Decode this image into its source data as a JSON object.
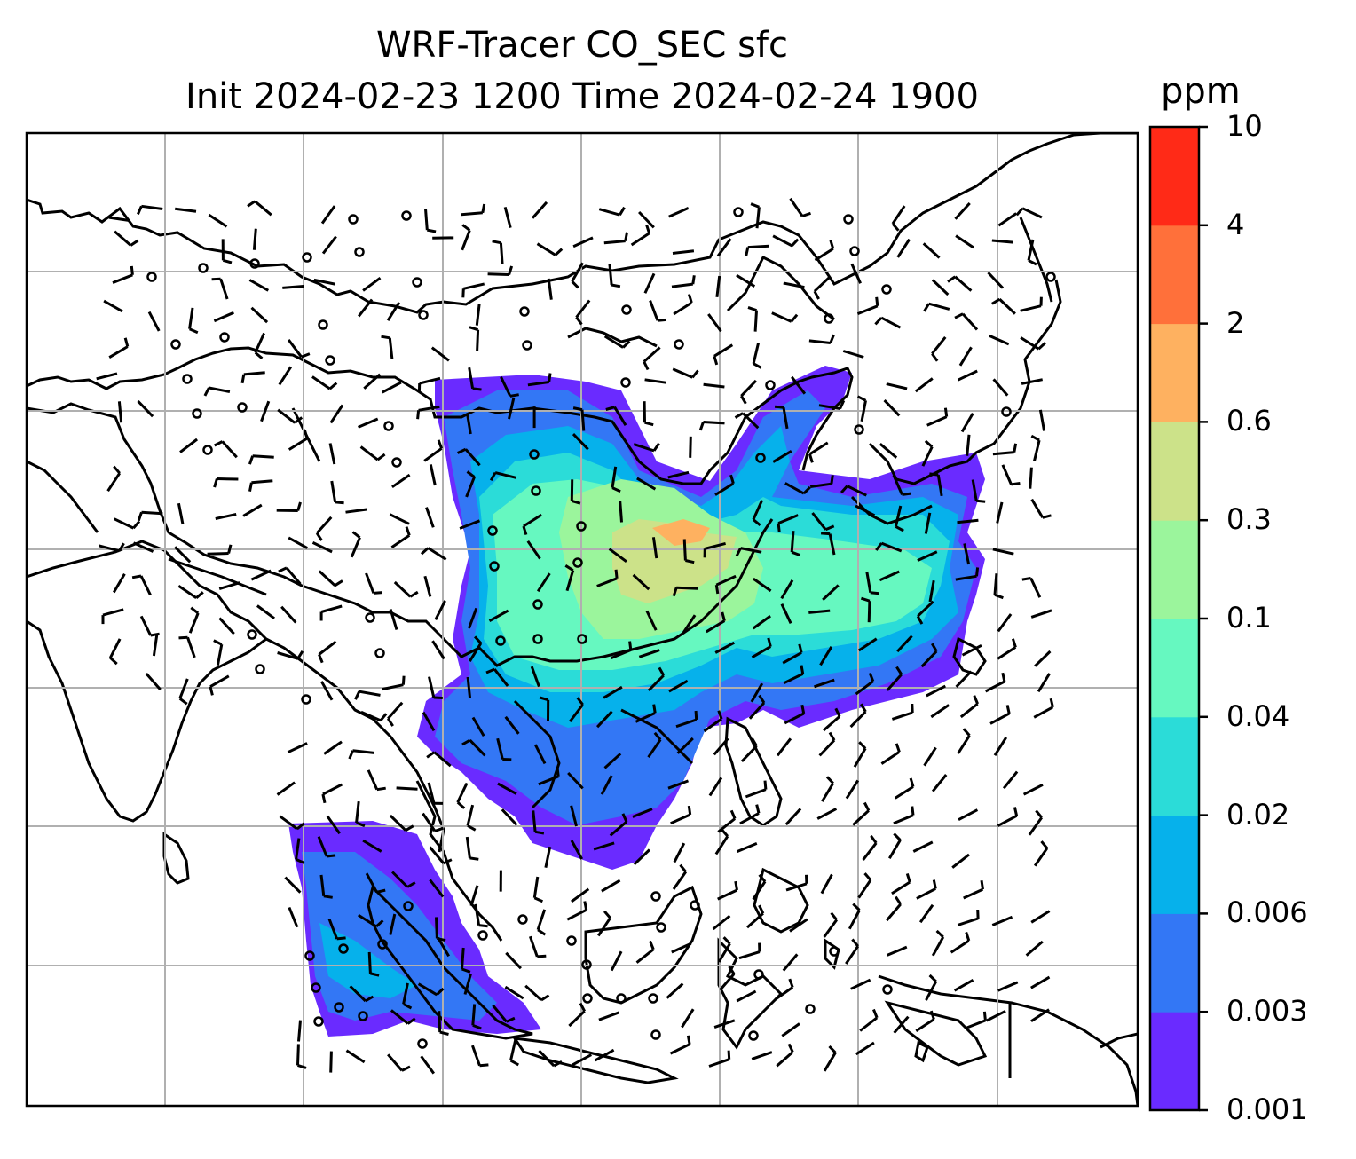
{
  "title": {
    "line1": "WRF-Tracer CO_SEC sfc",
    "line2": "Init 2024-02-23 1200 Time 2024-02-24 1900"
  },
  "colorbar": {
    "unit": "ppm",
    "levels": [
      "0.001",
      "0.003",
      "0.006",
      "0.02",
      "0.04",
      "0.1",
      "0.3",
      "0.6",
      "2",
      "4",
      "10"
    ],
    "colors": [
      "#6a2bff",
      "#3377f5",
      "#06b1eb",
      "#2bdcd8",
      "#66f8c0",
      "#9bf59c",
      "#cce289",
      "#feb160",
      "#ff703a",
      "#ff2a17"
    ]
  },
  "map": {
    "gridlines": true,
    "coastline_color": "#000000",
    "wind_barbs": true,
    "calm_marker": "circle"
  }
}
